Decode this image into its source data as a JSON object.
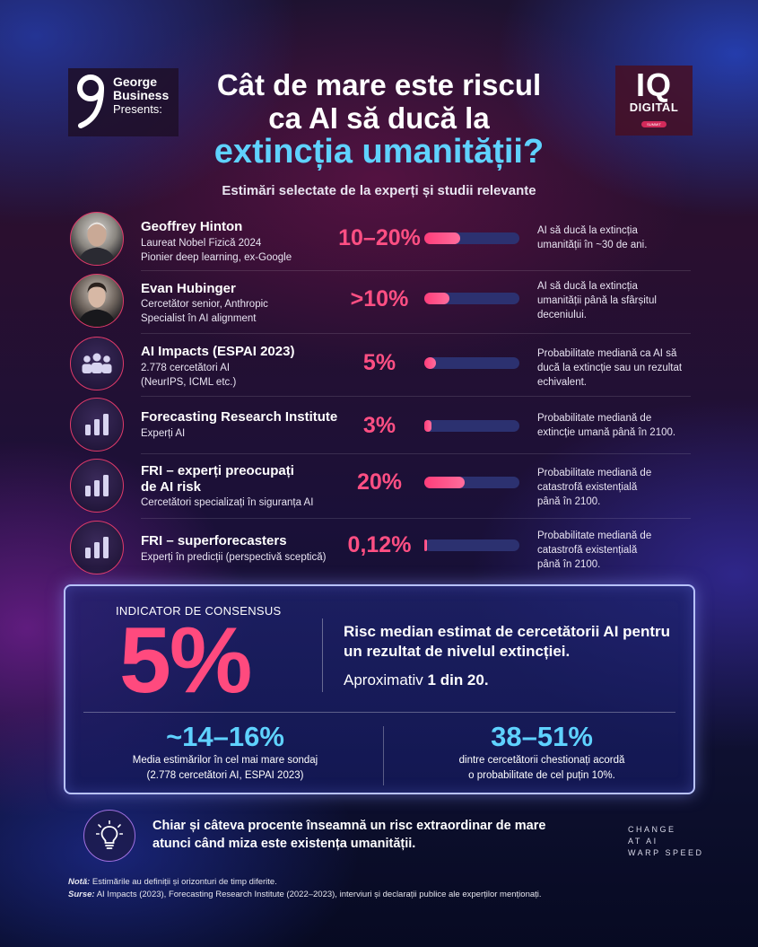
{
  "header": {
    "george_line1": "George",
    "george_line2": "Business",
    "george_line3": "Presents:",
    "iq_line1": "IQ",
    "iq_line2": "DIGITAL",
    "iq_line3": "SUMMIT",
    "title_line1": "Cât de mare este riscul",
    "title_line2": "ca AI să ducă la",
    "title_line3": "extincția umanității?",
    "subtitle": "Estimări selectate de la experți și studii relevante"
  },
  "rows": [
    {
      "name": "Geoffrey Hinton",
      "desc1": "Laureat Nobel Fizică 2024",
      "desc2": "Pionier deep learning, ex-Google",
      "pct": "10–20%",
      "level": 0.38,
      "note1": "AI să ducă la extincția",
      "note2": "umanității în ~30 de ani.",
      "note3": "",
      "icon": "person-photo"
    },
    {
      "name": "Evan Hubinger",
      "desc1": "Cercetător senior, Anthropic",
      "desc2": "Specialist în AI alignment",
      "pct": ">10%",
      "level": 0.26,
      "note1": "AI să ducă la extincția",
      "note2": "umanității până la sfârșitul",
      "note3": "deceniului.",
      "icon": "person-photo"
    },
    {
      "name": "AI Impacts (ESPAI 2023)",
      "desc1": "2.778 cercetători AI",
      "desc2": "(NeurIPS, ICML etc.)",
      "pct": "5%",
      "level": 0.12,
      "note1": "Probabilitate mediană ca AI să",
      "note2": "ducă la extincție sau un rezultat",
      "note3": "echivalent.",
      "icon": "group-icon"
    },
    {
      "name": "Forecasting Research Institute",
      "desc1": "Experți AI",
      "desc2": "",
      "pct": "3%",
      "level": 0.08,
      "note1": "Probabilitate mediană de",
      "note2": "extincție umană până în 2100.",
      "note3": "",
      "icon": "bar-chart-icon"
    },
    {
      "name": "FRI – experți preocupați",
      "name2": "de AI risk",
      "desc1": "Cercetători specializați în siguranța AI",
      "desc2": "",
      "pct": "20%",
      "level": 0.42,
      "note1": "Probabilitate mediană de",
      "note2": "catastrofă existențială",
      "note3": "până în 2100.",
      "icon": "bar-chart-icon"
    },
    {
      "name": "FRI – superforecasters",
      "desc1": "Experți în predicții (perspectivă sceptică)",
      "desc2": "",
      "pct": "0,12%",
      "level": 0.03,
      "note1": "Probabilitate mediană de",
      "note2": "catastrofă existențială",
      "note3": "până în 2100.",
      "icon": "bar-chart-icon"
    }
  ],
  "consensus": {
    "label": "INDICATOR DE CONSENSUS",
    "big": "5%",
    "text": "Risc median estimat de cercetătorii AI pentru un rezultat de nivelul extincției.",
    "approx_prefix": "Aproximativ ",
    "approx_bold": "1 din 20.",
    "stat1": "~14–16%",
    "stat1_desc1": "Media estimărilor în cel mai mare sondaj",
    "stat1_desc2": "(2.778 cercetători AI, ESPAI 2023)",
    "stat2": "38–51%",
    "stat2_desc1": "dintre cercetătorii chestionați acordă",
    "stat2_desc2": "o probabilitate de cel puțin 10%."
  },
  "footer": {
    "quote": "Chiar și câteva procente înseamnă un risc extraordinar de mare atunci când miza este existența umanității.",
    "tag1": "CHANGE",
    "tag2": "AT AI",
    "tag3": "WARP SPEED",
    "note_label": "Notă:",
    "note_text": " Estimările au definiții și orizonturi de timp diferite.",
    "src_label": "Surse:",
    "src_text": " AI Impacts (2023), Forecasting Research Institute (2022–2023), interviuri și declarații publice ale experților menționați."
  },
  "colors": {
    "accent_pink": "#ff4f83",
    "accent_cyan": "#5fd2ff",
    "bar_track": "#2c3170"
  }
}
